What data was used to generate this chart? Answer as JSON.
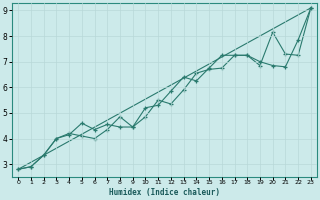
{
  "xlabel": "Humidex (Indice chaleur)",
  "bg_color": "#cceaea",
  "line_color": "#2a7a6e",
  "grid_color": "#b8d8d8",
  "xlim": [
    -0.5,
    23.5
  ],
  "ylim": [
    2.5,
    9.3
  ],
  "xticks": [
    0,
    1,
    2,
    3,
    4,
    5,
    6,
    7,
    8,
    9,
    10,
    11,
    12,
    13,
    14,
    15,
    16,
    17,
    18,
    19,
    20,
    21,
    22,
    23
  ],
  "yticks": [
    3,
    4,
    5,
    6,
    7,
    8,
    9
  ],
  "series1_x": [
    0,
    1,
    2,
    3,
    4,
    5,
    6,
    7,
    8,
    9,
    10,
    11,
    12,
    13,
    14,
    15,
    16,
    17,
    18,
    19,
    20,
    21,
    22,
    23
  ],
  "series1_y": [
    2.8,
    2.9,
    3.35,
    4.0,
    4.15,
    4.6,
    4.35,
    4.55,
    4.45,
    4.45,
    5.2,
    5.3,
    5.85,
    6.4,
    6.25,
    6.75,
    7.25,
    7.25,
    7.25,
    7.0,
    6.85,
    6.8,
    7.85,
    9.1
  ],
  "series2_x": [
    0,
    1,
    2,
    3,
    4,
    5,
    6,
    7,
    8,
    9,
    10,
    11,
    12,
    13,
    14,
    15,
    16,
    17,
    18,
    19,
    20,
    21,
    22,
    23
  ],
  "series2_y": [
    2.8,
    2.9,
    3.35,
    4.0,
    4.2,
    4.1,
    4.0,
    4.35,
    4.85,
    4.45,
    4.85,
    5.5,
    5.35,
    5.9,
    6.55,
    6.7,
    6.75,
    7.25,
    7.25,
    6.85,
    8.15,
    7.3,
    7.25,
    9.1
  ],
  "trend_x": [
    0,
    23
  ],
  "trend_y": [
    2.8,
    9.1
  ]
}
